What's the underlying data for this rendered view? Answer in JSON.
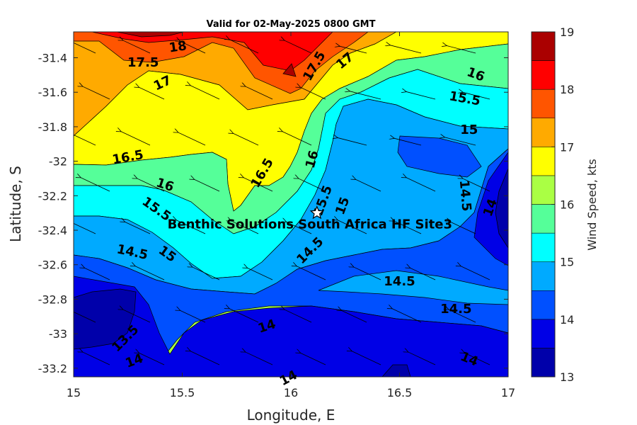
{
  "chart_data": {
    "type": "contour",
    "title": "Valid for 02-May-2025 0800 GMT",
    "xlabel": "Longitude, E",
    "ylabel": "Latitude, S",
    "xlim": [
      15,
      17
    ],
    "ylim": [
      -33.25,
      -31.25
    ],
    "xticks": [
      15,
      15.5,
      16,
      16.5,
      17
    ],
    "yticks": [
      -31.4,
      -31.6,
      -31.8,
      -32,
      -32.2,
      -32.4,
      -32.6,
      -32.8,
      -33,
      -33.2
    ],
    "colorbar": {
      "label": "Wind Speed, kts",
      "ticks": [
        13,
        14,
        15,
        16,
        17,
        18,
        19
      ],
      "levels": [
        13,
        13.5,
        14,
        14.5,
        15,
        15.5,
        16,
        16.5,
        17,
        17.5,
        18,
        18.5,
        19
      ],
      "colors": [
        "#0000aa",
        "#0000e6",
        "#0050ff",
        "#00aaff",
        "#00ffff",
        "#55ff99",
        "#aaff44",
        "#ffff00",
        "#ffaa00",
        "#ff5500",
        "#ff0000",
        "#aa0000"
      ]
    },
    "contour_labels": [
      {
        "text": "18",
        "lon": 15.48,
        "lat": -31.34,
        "rot": -8
      },
      {
        "text": "17.5",
        "lon": 15.32,
        "lat": -31.43,
        "rot": 0
      },
      {
        "text": "17",
        "lon": 15.41,
        "lat": -31.55,
        "rot": -25
      },
      {
        "text": "17.5",
        "lon": 16.11,
        "lat": -31.45,
        "rot": -60
      },
      {
        "text": "17",
        "lon": 16.25,
        "lat": -31.42,
        "rot": -40
      },
      {
        "text": "16",
        "lon": 16.85,
        "lat": -31.5,
        "rot": 20
      },
      {
        "text": "15.5",
        "lon": 16.8,
        "lat": -31.64,
        "rot": 10
      },
      {
        "text": "15",
        "lon": 16.82,
        "lat": -31.82,
        "rot": 0
      },
      {
        "text": "16.5",
        "lon": 15.25,
        "lat": -31.98,
        "rot": -10
      },
      {
        "text": "16",
        "lon": 15.42,
        "lat": -32.14,
        "rot": 18
      },
      {
        "text": "16.5",
        "lon": 15.87,
        "lat": -32.07,
        "rot": -60
      },
      {
        "text": "16",
        "lon": 16.1,
        "lat": -31.99,
        "rot": -75
      },
      {
        "text": "15.5",
        "lon": 16.15,
        "lat": -32.23,
        "rot": -70
      },
      {
        "text": "15",
        "lon": 16.24,
        "lat": -32.26,
        "rot": -70
      },
      {
        "text": "15.5",
        "lon": 15.38,
        "lat": -32.28,
        "rot": 35
      },
      {
        "text": "14.5",
        "lon": 16.8,
        "lat": -32.2,
        "rot": 85
      },
      {
        "text": "14",
        "lon": 16.92,
        "lat": -32.27,
        "rot": -70
      },
      {
        "text": "14.5",
        "lon": 15.27,
        "lat": -32.53,
        "rot": 12
      },
      {
        "text": "15",
        "lon": 15.43,
        "lat": -32.54,
        "rot": 35
      },
      {
        "text": "14.5",
        "lon": 16.09,
        "lat": -32.52,
        "rot": -45
      },
      {
        "text": "14.5",
        "lon": 16.5,
        "lat": -32.7,
        "rot": 0
      },
      {
        "text": "14.5",
        "lon": 16.76,
        "lat": -32.86,
        "rot": 0
      },
      {
        "text": "14",
        "lon": 15.89,
        "lat": -32.96,
        "rot": -18
      },
      {
        "text": "13.5",
        "lon": 15.24,
        "lat": -33.03,
        "rot": -45
      },
      {
        "text": "14",
        "lon": 15.28,
        "lat": -33.16,
        "rot": -20
      },
      {
        "text": "14",
        "lon": 16.82,
        "lat": -33.15,
        "rot": 22
      },
      {
        "text": "14",
        "lon": 15.99,
        "lat": -33.26,
        "rot": -28
      }
    ],
    "site_marker": {
      "label": "Benthic Solutions South Africa HF Site3",
      "lon": 16.12,
      "lat": -32.3
    }
  }
}
